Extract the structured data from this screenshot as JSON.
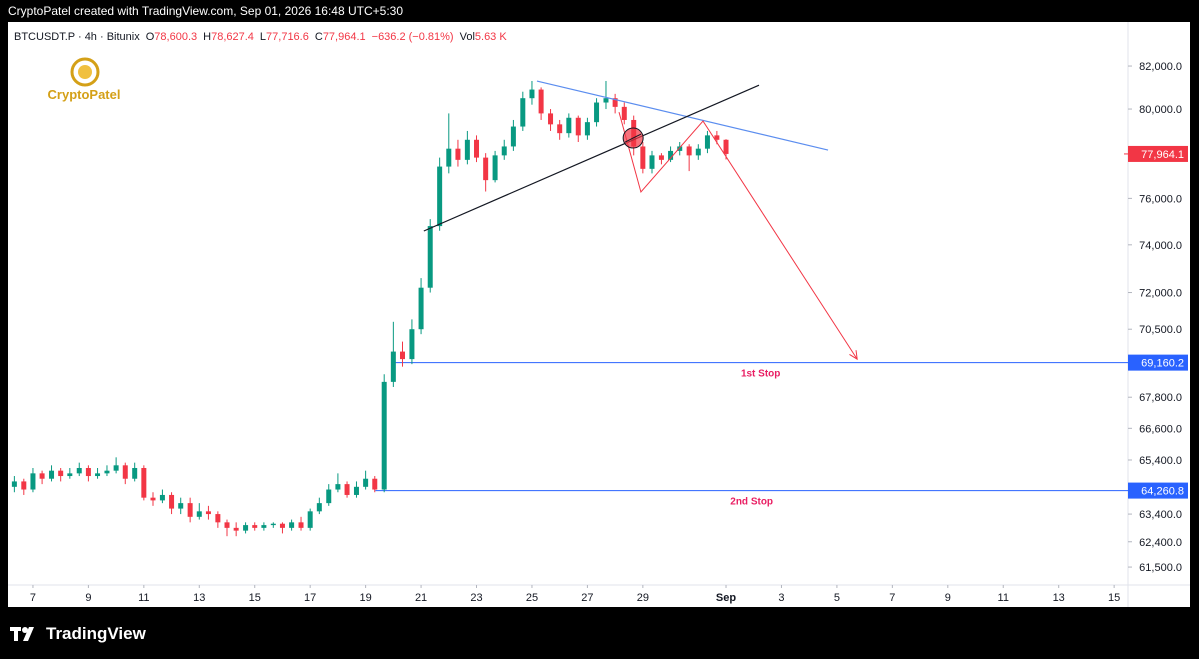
{
  "header": {
    "caption": "CryptoPatel created with TradingView.com, Sep 01, 2026 16:48 UTC+5:30"
  },
  "brand": {
    "logo_text": "CryptoPatel",
    "footer": "TradingView"
  },
  "chart_data": {
    "type": "candlestick",
    "symbol": "BTCUSDT.P · 4h · Bitunix",
    "ohlc_legend": [
      {
        "label": "O",
        "value": "78,600.3"
      },
      {
        "label": "H",
        "value": "78,627.4"
      },
      {
        "label": "L",
        "value": "77,716.6"
      },
      {
        "label": "C",
        "value": "77,964.1"
      }
    ],
    "change": "−636.2 (−0.81%)",
    "volume": {
      "label": "Vol",
      "value": "5.63 K"
    },
    "up_color": "#089981",
    "down_color": "#f23645",
    "log_scale": true,
    "grid": false,
    "xlim": [
      -0.9,
      39.5
    ],
    "ylim": [
      60870,
      84100
    ],
    "xticks": [
      {
        "value": 0,
        "label": "7"
      },
      {
        "value": 2,
        "label": "9"
      },
      {
        "value": 4,
        "label": "11"
      },
      {
        "value": 6,
        "label": "13"
      },
      {
        "value": 8,
        "label": "15"
      },
      {
        "value": 10,
        "label": "17"
      },
      {
        "value": 12,
        "label": "19"
      },
      {
        "value": 14,
        "label": "21"
      },
      {
        "value": 16,
        "label": "23"
      },
      {
        "value": 18,
        "label": "25"
      },
      {
        "value": 20,
        "label": "27"
      },
      {
        "value": 22,
        "label": "29"
      },
      {
        "value": 25,
        "label": "Sep"
      },
      {
        "value": 27,
        "label": "3"
      },
      {
        "value": 29,
        "label": "5"
      },
      {
        "value": 31,
        "label": "7"
      },
      {
        "value": 33,
        "label": "9"
      },
      {
        "value": 35,
        "label": "11"
      },
      {
        "value": 37,
        "label": "13"
      },
      {
        "value": 39,
        "label": "15"
      }
    ],
    "yticks": [
      {
        "value": 82000,
        "label": "82,000.0"
      },
      {
        "value": 80000,
        "label": "80,000.0"
      },
      {
        "value": 76000,
        "label": "76,000.0"
      },
      {
        "value": 74000,
        "label": "74,000.0"
      },
      {
        "value": 72000,
        "label": "72,000.0"
      },
      {
        "value": 70500,
        "label": "70,500.0"
      },
      {
        "value": 67800,
        "label": "67,800.0"
      },
      {
        "value": 66600,
        "label": "66,600.0"
      },
      {
        "value": 65400,
        "label": "65,400.0"
      },
      {
        "value": 63400,
        "label": "63,400.0"
      },
      {
        "value": 62400,
        "label": "62,400.0"
      },
      {
        "value": 61500,
        "label": "61,500.0"
      }
    ],
    "x": [
      -0.67,
      -0.33,
      0,
      0.33,
      0.67,
      1,
      1.33,
      1.67,
      2,
      2.33,
      2.67,
      3,
      3.33,
      3.67,
      4,
      4.33,
      4.67,
      5,
      5.33,
      5.67,
      6,
      6.33,
      6.67,
      7,
      7.33,
      7.67,
      8,
      8.33,
      8.67,
      9,
      9.33,
      9.67,
      10,
      10.33,
      10.67,
      11,
      11.33,
      11.67,
      12,
      12.33,
      12.67,
      13,
      13.33,
      13.67,
      14,
      14.33,
      14.67,
      15,
      15.33,
      15.67,
      16,
      16.33,
      16.67,
      17,
      17.33,
      17.67,
      18,
      18.33,
      18.67,
      19,
      19.33,
      19.67,
      20,
      20.33,
      20.67,
      21,
      21.33,
      21.67,
      22,
      22.33,
      22.67,
      23,
      23.33,
      23.67,
      24,
      24.33,
      24.67,
      25
    ],
    "open": [
      64400,
      64600,
      64300,
      64900,
      64700,
      65000,
      64800,
      64900,
      65100,
      64800,
      64900,
      65000,
      65200,
      64700,
      65100,
      64000,
      63900,
      64100,
      63600,
      63800,
      63300,
      63500,
      63400,
      63100,
      62900,
      62800,
      63000,
      62900,
      63000,
      63050,
      62900,
      63100,
      62900,
      63500,
      63800,
      64300,
      64500,
      64100,
      64400,
      64700,
      64300,
      68400,
      69600,
      69300,
      70500,
      72200,
      74800,
      77400,
      78200,
      77700,
      78600,
      77800,
      76800,
      77900,
      78300,
      79200,
      80500,
      80900,
      79800,
      79300,
      78900,
      79600,
      78800,
      79400,
      80300,
      80500,
      80100,
      79500,
      78300,
      77300,
      77900,
      77700,
      78100,
      78300,
      77900,
      78200,
      78800,
      78600.3
    ],
    "high": [
      64800,
      64700,
      65100,
      65000,
      65200,
      65100,
      65100,
      65300,
      65200,
      65100,
      65200,
      65500,
      65300,
      65300,
      65200,
      64200,
      64300,
      64200,
      64000,
      64000,
      63800,
      63700,
      63500,
      63200,
      63100,
      63100,
      63100,
      63100,
      63100,
      63100,
      63200,
      63300,
      63600,
      64000,
      64500,
      64900,
      64600,
      64600,
      65000,
      64800,
      68700,
      70800,
      70000,
      70900,
      72600,
      75100,
      77800,
      79800,
      78600,
      79000,
      78800,
      78000,
      78100,
      78600,
      79500,
      80800,
      81300,
      81000,
      80000,
      79500,
      79800,
      79700,
      79600,
      80500,
      81300,
      80700,
      80300,
      79700,
      78500,
      78100,
      78000,
      78300,
      78500,
      78400,
      78400,
      79000,
      79000,
      78627.4
    ],
    "low": [
      64200,
      64100,
      64200,
      64500,
      64600,
      64600,
      64700,
      64800,
      64600,
      64700,
      64800,
      64900,
      64500,
      64600,
      63900,
      63700,
      63800,
      63400,
      63400,
      63100,
      63200,
      63200,
      62900,
      62600,
      62600,
      62700,
      62800,
      62800,
      62900,
      62700,
      62800,
      62800,
      62800,
      63400,
      63700,
      64200,
      64000,
      64000,
      64300,
      64200,
      64200,
      68200,
      69000,
      69100,
      70300,
      72000,
      74600,
      77100,
      77400,
      77500,
      77600,
      76300,
      76700,
      77700,
      78100,
      79000,
      80200,
      79500,
      79000,
      78600,
      78700,
      78500,
      78600,
      79200,
      80000,
      79800,
      79300,
      77900,
      77100,
      77100,
      77500,
      77600,
      77900,
      77200,
      77700,
      78000,
      78400,
      77716.6
    ],
    "close": [
      64600,
      64300,
      64900,
      64700,
      65000,
      64800,
      64900,
      65100,
      64800,
      64900,
      65000,
      65200,
      64700,
      65100,
      64000,
      63900,
      64100,
      63600,
      63800,
      63300,
      63500,
      63400,
      63100,
      62900,
      62800,
      63000,
      62900,
      63000,
      63050,
      62900,
      63100,
      62900,
      63500,
      63800,
      64300,
      64500,
      64100,
      64400,
      64700,
      64300,
      68400,
      69600,
      69300,
      70500,
      72200,
      74800,
      77400,
      78200,
      77700,
      78600,
      77800,
      76800,
      77900,
      78300,
      79200,
      80500,
      80900,
      79800,
      79300,
      78900,
      79600,
      78800,
      79400,
      80300,
      80500,
      80100,
      79500,
      78300,
      77300,
      77900,
      77700,
      78100,
      78300,
      77900,
      78200,
      78800,
      78600.3,
      77964.1
    ],
    "price_tags": [
      {
        "value": 77964.1,
        "label": "77,964.1",
        "color": "#f23645"
      }
    ],
    "levels": [
      {
        "value": 69160.2,
        "label": "69,160.2",
        "text": "1st Stop",
        "start": 13.0,
        "color": "#2962ff",
        "text_color": "#e91e63"
      },
      {
        "value": 64260.8,
        "label": "64,260.8",
        "text": "2nd Stop",
        "start": 12.35,
        "color": "#2962ff",
        "text_color": "#e91e63"
      }
    ],
    "trendlines": [
      {
        "color": "#5b8def",
        "points": [
          [
            18.18,
            81296
          ],
          [
            28.68,
            78138
          ]
        ]
      },
      {
        "color": "#131722",
        "points": [
          [
            14.1,
            74590
          ],
          [
            26.19,
            81105
          ]
        ]
      }
    ],
    "projection": {
      "color": "#f23645",
      "points": [
        [
          21.14,
          79860
        ],
        [
          21.93,
          76280
        ],
        [
          24.17,
          79450
        ],
        [
          29.73,
          69300
        ]
      ]
    },
    "marker": {
      "color": "#f23645",
      "x": 21.65,
      "value": 78680
    }
  }
}
